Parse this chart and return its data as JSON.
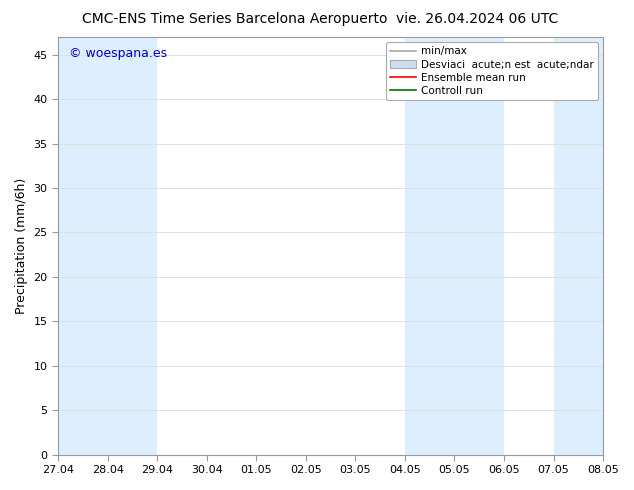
{
  "title_left": "CMC-ENS Time Series Barcelona Aeropuerto",
  "title_right": "vie. 26.04.2024 06 UTC",
  "ylabel": "Precipitation (mm/6h)",
  "watermark": "© woespana.es",
  "xtick_labels": [
    "27.04",
    "28.04",
    "29.04",
    "30.04",
    "01.05",
    "02.05",
    "03.05",
    "04.05",
    "05.05",
    "06.05",
    "07.05",
    "08.05"
  ],
  "ytick_labels": [
    0,
    5,
    10,
    15,
    20,
    25,
    30,
    35,
    40,
    45
  ],
  "ylim": [
    0,
    47
  ],
  "xlim": [
    0,
    11
  ],
  "bg_color": "#ffffff",
  "plot_bg_color": "#ffffff",
  "shaded_bands": [
    {
      "x_start": 0.0,
      "x_end": 2.0,
      "color": "#ddeeff"
    },
    {
      "x_start": 7.0,
      "x_end": 9.0,
      "color": "#ddeeff"
    },
    {
      "x_start": 10.0,
      "x_end": 11.0,
      "color": "#ddeeff"
    }
  ],
  "legend_label_minmax": "min/max",
  "legend_label_std": "Desviaci  acute;n est  acute;ndar",
  "legend_label_ensemble": "Ensemble mean run",
  "legend_label_control": "Controll run",
  "minmax_color": "#aaaaaa",
  "std_color": "#ccddf0",
  "ensemble_color": "#ff0000",
  "control_color": "#007700",
  "title_fontsize": 10,
  "tick_fontsize": 8,
  "ylabel_fontsize": 9,
  "legend_fontsize": 7.5,
  "watermark_color": "#0000cc",
  "watermark_fontsize": 9
}
